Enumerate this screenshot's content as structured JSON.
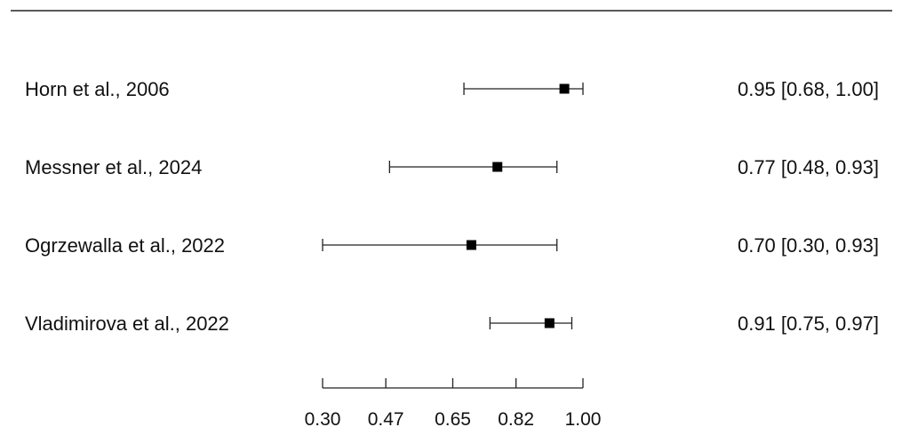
{
  "chart_data": {
    "type": "forest",
    "title": "",
    "xlabel": "",
    "xlim": [
      0.3,
      1.0
    ],
    "xticks": [
      0.3,
      0.47,
      0.65,
      0.82,
      1.0
    ],
    "xtick_labels": [
      "0.30",
      "0.47",
      "0.65",
      "0.82",
      "1.00"
    ],
    "studies": [
      {
        "label": "Horn et al.,  2006",
        "estimate": 0.95,
        "lower": 0.68,
        "upper": 1.0,
        "text": "0.95 [0.68, 1.00]"
      },
      {
        "label": "Messner et al.,  2024",
        "estimate": 0.77,
        "lower": 0.48,
        "upper": 0.93,
        "text": "0.77 [0.48, 0.93]"
      },
      {
        "label": "Ogrzewalla et al.,  2022",
        "estimate": 0.7,
        "lower": 0.3,
        "upper": 0.93,
        "text": "0.70 [0.30, 0.93]"
      },
      {
        "label": "Vladimirova et al.,  2022",
        "estimate": 0.91,
        "lower": 0.75,
        "upper": 0.97,
        "text": "0.91 [0.75, 0.97]"
      }
    ]
  }
}
